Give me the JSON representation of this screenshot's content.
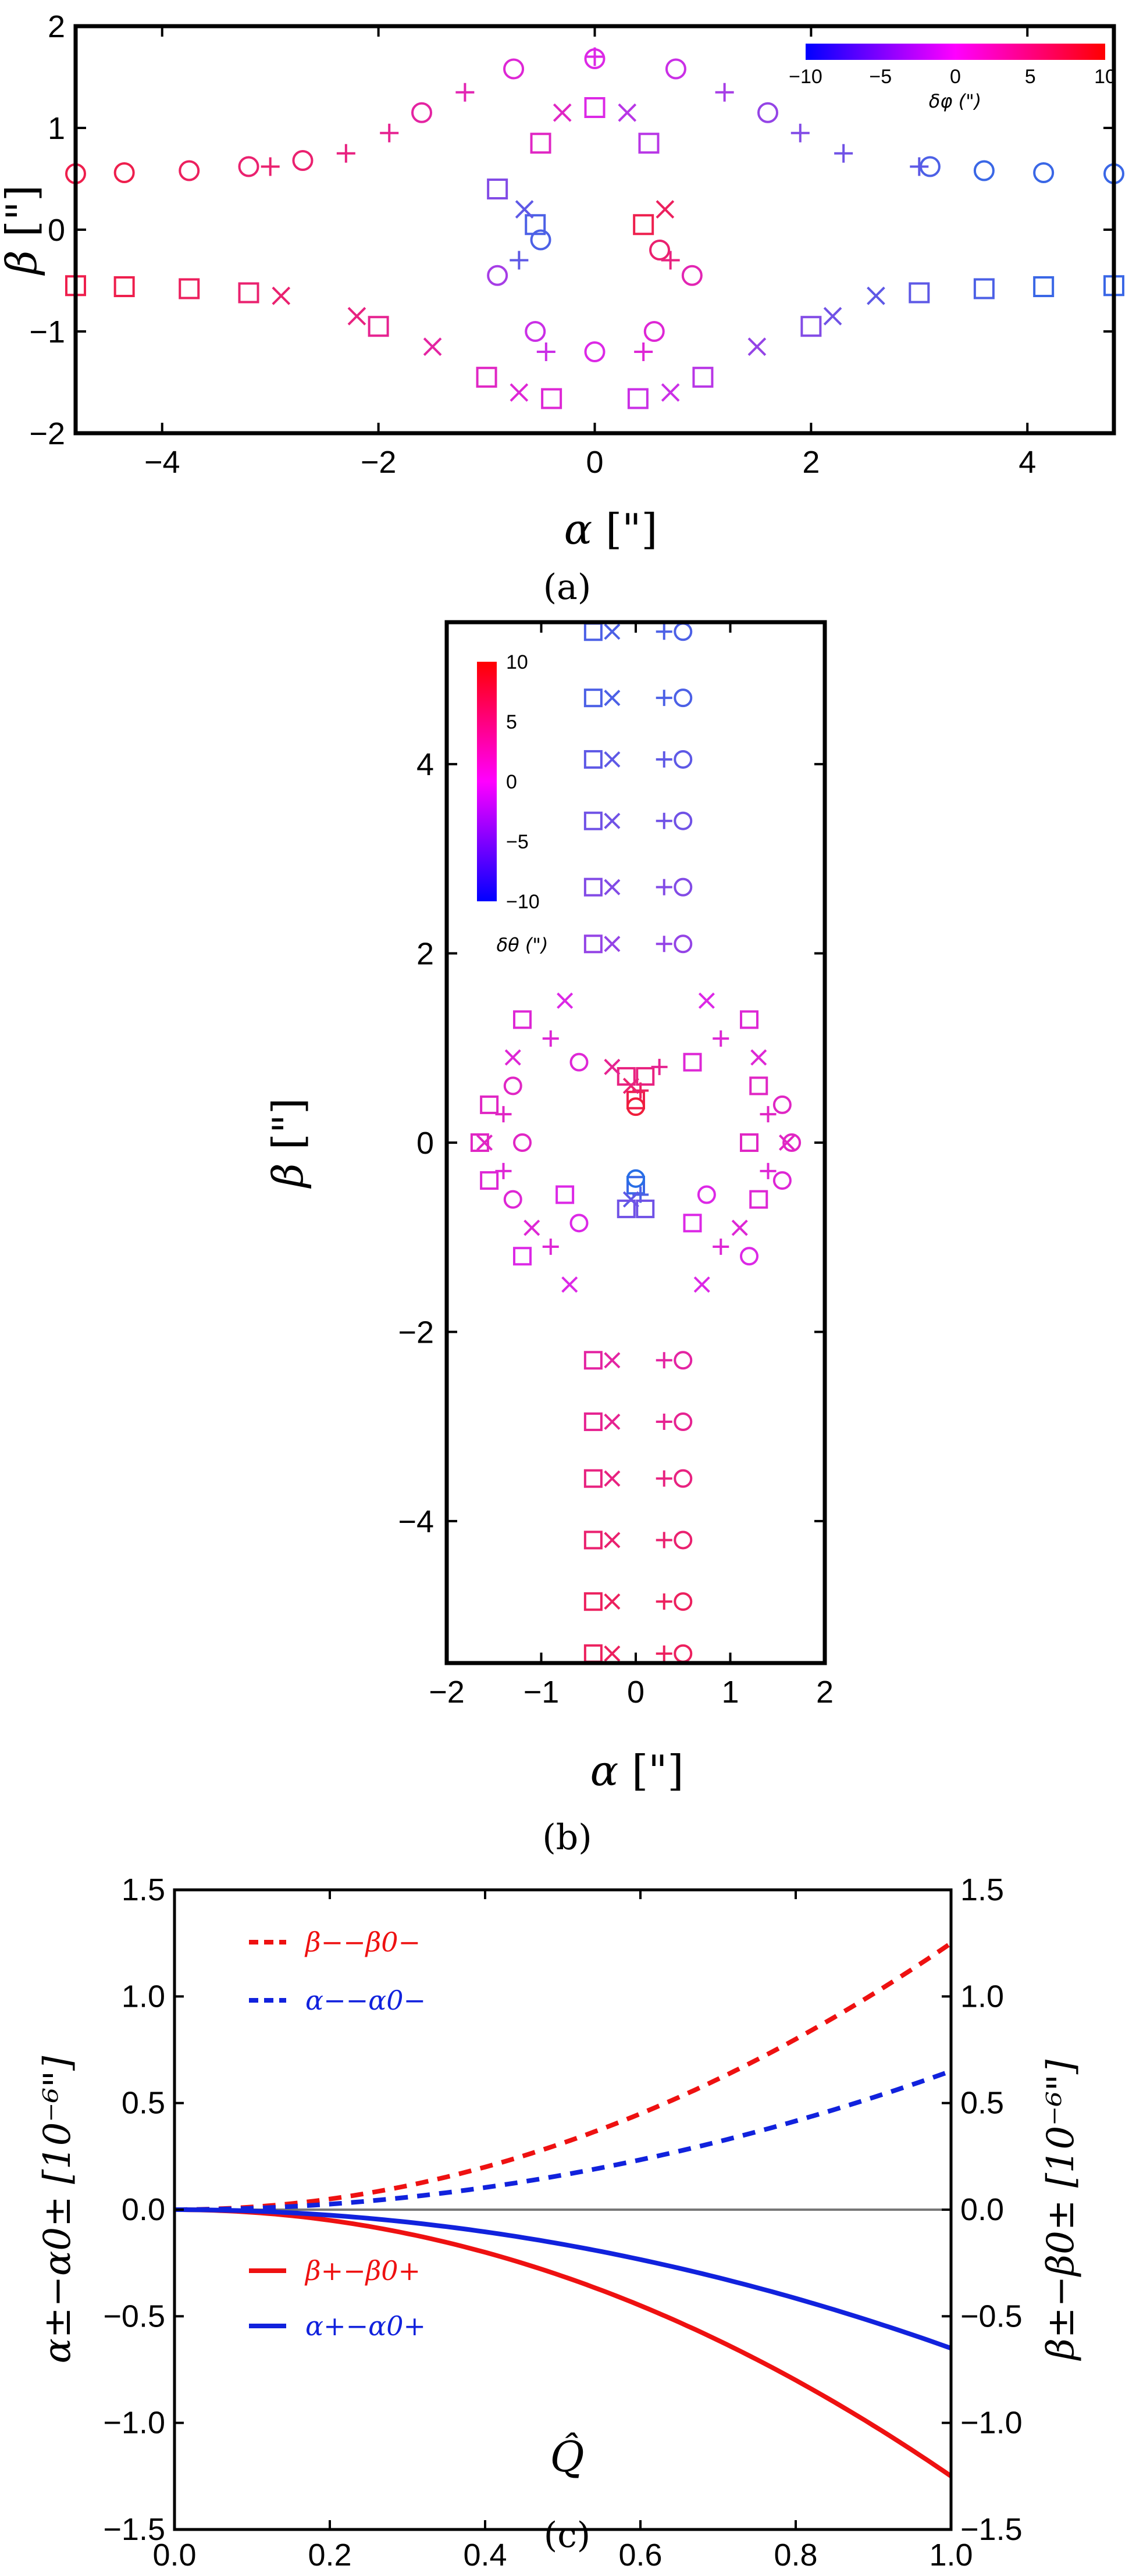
{
  "chart_data": [
    {
      "panel": "a",
      "caption": "(a)",
      "type": "scatter",
      "xlabel": "α",
      "xunit": "[\"]",
      "ylabel": "β",
      "yunit": "[\"]",
      "xlim": [
        -4.8,
        4.8
      ],
      "ylim": [
        -2,
        2
      ],
      "xticks": [
        -4,
        -2,
        0,
        2,
        4
      ],
      "yticks": [
        -2,
        -1,
        0,
        1,
        2
      ],
      "grid": false,
      "colorbar": {
        "title": "δφ (\")",
        "range": [
          -10,
          10
        ],
        "ticks": [
          -10,
          -5,
          0,
          5,
          10
        ],
        "orientation": "horizontal",
        "placement": "top-right",
        "colors": [
          "#0000ff",
          "#ff00ff",
          "#ff0000"
        ]
      },
      "marker_types": [
        "circle",
        "square",
        "plus",
        "cross"
      ],
      "rings": [
        {
          "marker": "circle",
          "alpha_half_width": 0.55,
          "beta_height": 1.68,
          "beta_inner": 0.25,
          "outer_x": 4.8,
          "outer_y": 0.55
        },
        {
          "marker": "plus",
          "alpha_half_width": 0.72,
          "beta_height": 1.7,
          "beta_inner": 0.3,
          "outer_x": 3.2,
          "outer_y": 0.62
        },
        {
          "marker": "cross",
          "alpha_half_width": 0.68,
          "beta_height": 1.2,
          "beta_inner": 0.2,
          "outer_x": 2.6,
          "outer_y": -0.65
        },
        {
          "marker": "square",
          "alpha_half_width": 0.55,
          "beta_height": 1.2,
          "beta_inner": 0.0,
          "outer_x": 4.8,
          "outer_y": -0.55
        }
      ],
      "points": [
        {
          "m": "circle",
          "x": -4.8,
          "y": 0.55,
          "c": 9
        },
        {
          "m": "circle",
          "x": -4.35,
          "y": 0.56,
          "c": 9
        },
        {
          "m": "circle",
          "x": -3.75,
          "y": 0.58,
          "c": 8
        },
        {
          "m": "circle",
          "x": -3.2,
          "y": 0.62,
          "c": 7
        },
        {
          "m": "circle",
          "x": -2.7,
          "y": 0.68,
          "c": 7
        },
        {
          "m": "circle",
          "x": -1.6,
          "y": 1.15,
          "c": 4
        },
        {
          "m": "circle",
          "x": -0.75,
          "y": 1.58,
          "c": 1
        },
        {
          "m": "circle",
          "x": 0.0,
          "y": 1.68,
          "c": 0
        },
        {
          "m": "circle",
          "x": 0.75,
          "y": 1.58,
          "c": -1
        },
        {
          "m": "circle",
          "x": 1.6,
          "y": 1.15,
          "c": -4
        },
        {
          "m": "circle",
          "x": 3.1,
          "y": 0.62,
          "c": -8
        },
        {
          "m": "circle",
          "x": 3.6,
          "y": 0.58,
          "c": -9
        },
        {
          "m": "circle",
          "x": 4.15,
          "y": 0.56,
          "c": -9
        },
        {
          "m": "circle",
          "x": 4.8,
          "y": 0.55,
          "c": -9
        },
        {
          "m": "circle",
          "x": -0.9,
          "y": -0.45,
          "c": -3
        },
        {
          "m": "circle",
          "x": -0.55,
          "y": -1.0,
          "c": -1
        },
        {
          "m": "circle",
          "x": 0.0,
          "y": -1.2,
          "c": 0
        },
        {
          "m": "circle",
          "x": 0.55,
          "y": -1.0,
          "c": 1
        },
        {
          "m": "circle",
          "x": 0.9,
          "y": -0.45,
          "c": 3
        },
        {
          "m": "circle",
          "x": -0.5,
          "y": -0.1,
          "c": -8
        },
        {
          "m": "circle",
          "x": 0.6,
          "y": -0.2,
          "c": 7
        },
        {
          "m": "square",
          "x": -4.8,
          "y": -0.55,
          "c": 9
        },
        {
          "m": "square",
          "x": -4.35,
          "y": -0.56,
          "c": 9
        },
        {
          "m": "square",
          "x": -3.75,
          "y": -0.58,
          "c": 8
        },
        {
          "m": "square",
          "x": -3.2,
          "y": -0.62,
          "c": 7
        },
        {
          "m": "square",
          "x": -2.0,
          "y": -0.95,
          "c": 5
        },
        {
          "m": "square",
          "x": -1.0,
          "y": -1.45,
          "c": 2
        },
        {
          "m": "square",
          "x": -0.4,
          "y": -1.66,
          "c": 1
        },
        {
          "m": "square",
          "x": 0.4,
          "y": -1.66,
          "c": -1
        },
        {
          "m": "square",
          "x": 1.0,
          "y": -1.45,
          "c": -2
        },
        {
          "m": "square",
          "x": 2.0,
          "y": -0.95,
          "c": -5
        },
        {
          "m": "square",
          "x": 3.0,
          "y": -0.62,
          "c": -7
        },
        {
          "m": "square",
          "x": 3.6,
          "y": -0.58,
          "c": -8
        },
        {
          "m": "square",
          "x": 4.15,
          "y": -0.56,
          "c": -9
        },
        {
          "m": "square",
          "x": 4.8,
          "y": -0.55,
          "c": -9
        },
        {
          "m": "square",
          "x": -0.9,
          "y": 0.4,
          "c": -5
        },
        {
          "m": "square",
          "x": -0.55,
          "y": 0.05,
          "c": -8
        },
        {
          "m": "square",
          "x": 0.45,
          "y": 0.05,
          "c": 9
        },
        {
          "m": "square",
          "x": -0.5,
          "y": 0.85,
          "c": 2
        },
        {
          "m": "square",
          "x": 0.0,
          "y": 1.2,
          "c": 0
        },
        {
          "m": "square",
          "x": 0.5,
          "y": 0.85,
          "c": -2
        },
        {
          "m": "plus",
          "x": -3.0,
          "y": 0.62,
          "c": 7
        },
        {
          "m": "plus",
          "x": -2.3,
          "y": 0.75,
          "c": 6
        },
        {
          "m": "plus",
          "x": -1.9,
          "y": 0.95,
          "c": 5
        },
        {
          "m": "plus",
          "x": -1.2,
          "y": 1.35,
          "c": 3
        },
        {
          "m": "plus",
          "x": 0.0,
          "y": 1.7,
          "c": 0
        },
        {
          "m": "plus",
          "x": 1.2,
          "y": 1.35,
          "c": -3
        },
        {
          "m": "plus",
          "x": 1.9,
          "y": 0.95,
          "c": -5
        },
        {
          "m": "plus",
          "x": 2.3,
          "y": 0.75,
          "c": -6
        },
        {
          "m": "plus",
          "x": 3.0,
          "y": 0.62,
          "c": -7
        },
        {
          "m": "plus",
          "x": -0.45,
          "y": -1.2,
          "c": -1
        },
        {
          "m": "plus",
          "x": 0.45,
          "y": -1.2,
          "c": 1
        },
        {
          "m": "plus",
          "x": -0.7,
          "y": -0.3,
          "c": -7
        },
        {
          "m": "plus",
          "x": 0.7,
          "y": -0.3,
          "c": 6
        },
        {
          "m": "cross",
          "x": -2.9,
          "y": -0.65,
          "c": 7
        },
        {
          "m": "cross",
          "x": -2.2,
          "y": -0.85,
          "c": 6
        },
        {
          "m": "cross",
          "x": -1.5,
          "y": -1.15,
          "c": 4
        },
        {
          "m": "cross",
          "x": -0.7,
          "y": -1.6,
          "c": 1
        },
        {
          "m": "cross",
          "x": 0.7,
          "y": -1.6,
          "c": -1
        },
        {
          "m": "cross",
          "x": 1.5,
          "y": -1.15,
          "c": -4
        },
        {
          "m": "cross",
          "x": 2.2,
          "y": -0.85,
          "c": -6
        },
        {
          "m": "cross",
          "x": 2.6,
          "y": -0.65,
          "c": -7
        },
        {
          "m": "cross",
          "x": -0.3,
          "y": 1.15,
          "c": 2
        },
        {
          "m": "cross",
          "x": 0.3,
          "y": 1.15,
          "c": -2
        },
        {
          "m": "cross",
          "x": -0.65,
          "y": 0.2,
          "c": -7
        },
        {
          "m": "cross",
          "x": 0.65,
          "y": 0.2,
          "c": 8
        }
      ]
    },
    {
      "panel": "b",
      "caption": "(b)",
      "type": "scatter",
      "xlabel": "α",
      "xunit": "[\"]",
      "ylabel": "β",
      "yunit": "[\"]",
      "xlim": [
        -2,
        2
      ],
      "ylim": [
        -5.5,
        5.5
      ],
      "xticks": [
        -2,
        -1,
        0,
        1,
        2
      ],
      "yticks": [
        -4,
        -2,
        0,
        2,
        4
      ],
      "grid": false,
      "colorbar": {
        "title": "δθ (\")",
        "range": [
          -10,
          10
        ],
        "ticks": [
          10,
          5,
          0,
          -5,
          -10
        ],
        "orientation": "vertical",
        "placement": "top-left",
        "colors": [
          "#0000ff",
          "#ff00ff",
          "#ff0000"
        ]
      },
      "marker_types": [
        "circle",
        "square",
        "plus",
        "cross"
      ],
      "column_markers": {
        "square": -0.45,
        "cross": -0.25,
        "plus": 0.3,
        "circle": 0.5
      },
      "column_rows": [
        {
          "y": 5.4,
          "c": -8
        },
        {
          "y": 4.7,
          "c": -8
        },
        {
          "y": 4.05,
          "c": -7
        },
        {
          "y": 3.4,
          "c": -6
        },
        {
          "y": 2.7,
          "c": -5
        },
        {
          "y": 2.1,
          "c": -4
        },
        {
          "y": -2.3,
          "c": 4
        },
        {
          "y": -2.95,
          "c": 5
        },
        {
          "y": -3.55,
          "c": 6
        },
        {
          "y": -4.2,
          "c": 7
        },
        {
          "y": -4.85,
          "c": 8
        },
        {
          "y": -5.4,
          "c": 8
        }
      ],
      "points": [
        {
          "m": "square",
          "x": -1.2,
          "y": 1.3,
          "c": 1
        },
        {
          "m": "cross",
          "x": -0.75,
          "y": 1.5,
          "c": 0
        },
        {
          "m": "plus",
          "x": -0.9,
          "y": 1.1,
          "c": 1
        },
        {
          "m": "square",
          "x": -1.55,
          "y": 0.4,
          "c": 2
        },
        {
          "m": "square",
          "x": -1.65,
          "y": 0.0,
          "c": 2
        },
        {
          "m": "square",
          "x": -1.55,
          "y": -0.4,
          "c": 1
        },
        {
          "m": "square",
          "x": -1.2,
          "y": -1.2,
          "c": 0
        },
        {
          "m": "cross",
          "x": -1.3,
          "y": 0.9,
          "c": 1
        },
        {
          "m": "cross",
          "x": -1.6,
          "y": 0.0,
          "c": 2
        },
        {
          "m": "cross",
          "x": -1.1,
          "y": -0.9,
          "c": 1
        },
        {
          "m": "cross",
          "x": -0.7,
          "y": -1.5,
          "c": 0
        },
        {
          "m": "plus",
          "x": -1.4,
          "y": 0.3,
          "c": 2
        },
        {
          "m": "plus",
          "x": -1.4,
          "y": -0.3,
          "c": 1
        },
        {
          "m": "plus",
          "x": -0.9,
          "y": -1.1,
          "c": 1
        },
        {
          "m": "circle",
          "x": -1.3,
          "y": 0.6,
          "c": 2
        },
        {
          "m": "circle",
          "x": -1.2,
          "y": 0.0,
          "c": 2
        },
        {
          "m": "circle",
          "x": -1.3,
          "y": -0.6,
          "c": 1
        },
        {
          "m": "circle",
          "x": -0.6,
          "y": -0.85,
          "c": 0
        },
        {
          "m": "circle",
          "x": -0.6,
          "y": 0.85,
          "c": 1
        },
        {
          "m": "square",
          "x": -0.75,
          "y": -0.55,
          "c": 0
        },
        {
          "m": "square",
          "x": 1.2,
          "y": 1.3,
          "c": 1
        },
        {
          "m": "cross",
          "x": 0.75,
          "y": 1.5,
          "c": 0
        },
        {
          "m": "plus",
          "x": 0.9,
          "y": 1.1,
          "c": 1
        },
        {
          "m": "circle",
          "x": 1.55,
          "y": 0.4,
          "c": 2
        },
        {
          "m": "circle",
          "x": 1.65,
          "y": 0.0,
          "c": 2
        },
        {
          "m": "circle",
          "x": 1.55,
          "y": -0.4,
          "c": 1
        },
        {
          "m": "circle",
          "x": 1.2,
          "y": -1.2,
          "c": 0
        },
        {
          "m": "cross",
          "x": 1.3,
          "y": 0.9,
          "c": 1
        },
        {
          "m": "cross",
          "x": 1.6,
          "y": 0.0,
          "c": 2
        },
        {
          "m": "cross",
          "x": 1.1,
          "y": -0.9,
          "c": 1
        },
        {
          "m": "cross",
          "x": 0.7,
          "y": -1.5,
          "c": 0
        },
        {
          "m": "plus",
          "x": 1.4,
          "y": 0.3,
          "c": 2
        },
        {
          "m": "plus",
          "x": 1.4,
          "y": -0.3,
          "c": 1
        },
        {
          "m": "plus",
          "x": 0.9,
          "y": -1.1,
          "c": 1
        },
        {
          "m": "square",
          "x": 1.3,
          "y": 0.6,
          "c": 2
        },
        {
          "m": "square",
          "x": 1.2,
          "y": 0.0,
          "c": 2
        },
        {
          "m": "square",
          "x": 1.3,
          "y": -0.6,
          "c": 1
        },
        {
          "m": "square",
          "x": 0.6,
          "y": -0.85,
          "c": 0
        },
        {
          "m": "square",
          "x": 0.6,
          "y": 0.85,
          "c": 1
        },
        {
          "m": "circle",
          "x": 0.75,
          "y": -0.55,
          "c": 0
        },
        {
          "m": "square",
          "x": 0.0,
          "y": 0.45,
          "c": 9
        },
        {
          "m": "circle",
          "x": 0.0,
          "y": 0.38,
          "c": 10
        },
        {
          "m": "plus",
          "x": 0.05,
          "y": 0.55,
          "c": 8
        },
        {
          "m": "cross",
          "x": -0.05,
          "y": 0.6,
          "c": 7
        },
        {
          "m": "square",
          "x": -0.1,
          "y": 0.7,
          "c": 6
        },
        {
          "m": "square",
          "x": 0.1,
          "y": 0.7,
          "c": 6
        },
        {
          "m": "cross",
          "x": -0.25,
          "y": 0.8,
          "c": 5
        },
        {
          "m": "plus",
          "x": 0.25,
          "y": 0.8,
          "c": 5
        },
        {
          "m": "square",
          "x": 0.0,
          "y": -0.45,
          "c": -9
        },
        {
          "m": "circle",
          "x": 0.0,
          "y": -0.38,
          "c": -10
        },
        {
          "m": "plus",
          "x": 0.05,
          "y": -0.55,
          "c": -8
        },
        {
          "m": "cross",
          "x": -0.05,
          "y": -0.6,
          "c": -7
        },
        {
          "m": "square",
          "x": -0.1,
          "y": -0.7,
          "c": -6
        },
        {
          "m": "square",
          "x": 0.1,
          "y": -0.7,
          "c": -6
        }
      ]
    },
    {
      "panel": "c",
      "caption": "(c)",
      "type": "line",
      "xlabel": "Q̂",
      "ylabel_left": "α±−α0± [10⁻⁶\"]",
      "ylabel_right": "β±−β0± [10⁻⁶\"]",
      "xlim": [
        0,
        1
      ],
      "ylim": [
        -1.5,
        1.5
      ],
      "xticks": [
        0.0,
        0.2,
        0.4,
        0.6,
        0.8,
        1.0
      ],
      "xtick_labels": [
        "0.0",
        "0.2",
        "0.4",
        "0.6",
        "0.8",
        "1.0"
      ],
      "yticks": [
        -1.5,
        -1.0,
        -0.5,
        0.0,
        0.5,
        1.0,
        1.5
      ],
      "ytick_labels": [
        "−1.5",
        "−1.0",
        "−0.5",
        "0.0",
        "0.5",
        "1.0",
        "1.5"
      ],
      "grid": false,
      "zero_line_color": "#777777",
      "series": [
        {
          "name": "β−−β0−",
          "color": "#ee1111",
          "dash": true,
          "coef": 1.25
        },
        {
          "name": "α−−α0−",
          "color": "#1122dd",
          "dash": true,
          "coef": 0.65
        },
        {
          "name": "β+−β0+",
          "color": "#ee1111",
          "dash": false,
          "coef": -1.25
        },
        {
          "name": "α+−α0+",
          "color": "#1122dd",
          "dash": false,
          "coef": -0.65
        }
      ],
      "curve_form": "coef * Q^2",
      "legend": [
        {
          "label": "β−−β0−",
          "color": "#ee1111",
          "dash": true,
          "placement": "top-left"
        },
        {
          "label": "α−−α0−",
          "color": "#1122dd",
          "dash": true,
          "placement": "top-left"
        },
        {
          "label": "β+−β0+",
          "color": "#ee1111",
          "dash": false,
          "placement": "bottom-left"
        },
        {
          "label": "α+−α0+",
          "color": "#1122dd",
          "dash": false,
          "placement": "bottom-left"
        }
      ]
    }
  ]
}
